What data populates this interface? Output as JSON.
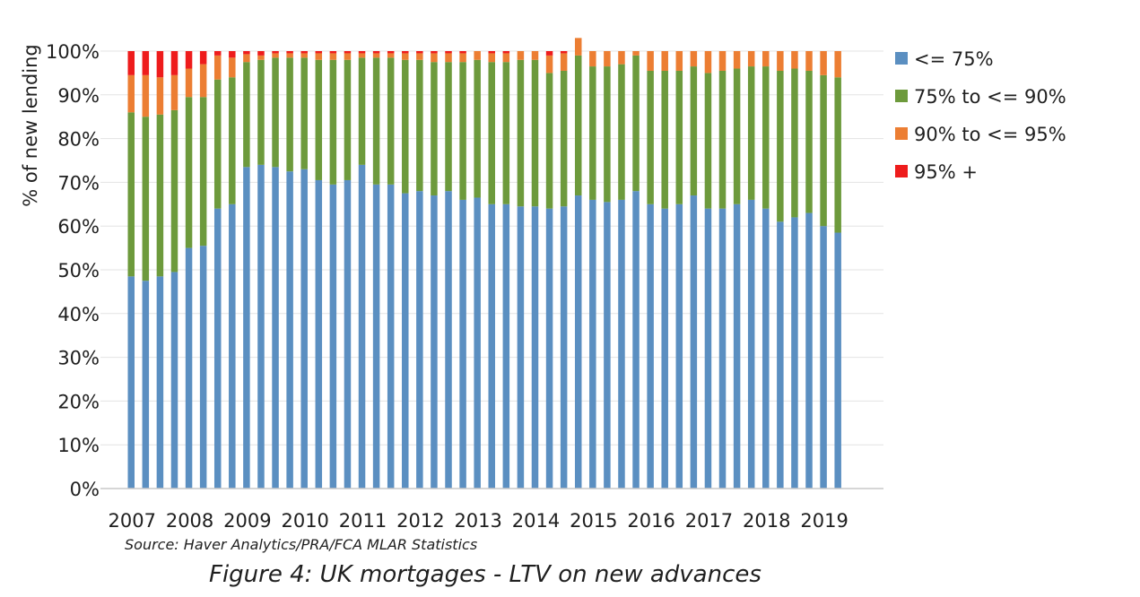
{
  "chart_data": {
    "type": "bar",
    "stacked": true,
    "title": "",
    "ylabel": "% of new lending",
    "xlabel": "",
    "ylim": [
      0,
      100
    ],
    "yticks": [
      "0%",
      "10%",
      "20%",
      "30%",
      "40%",
      "50%",
      "60%",
      "70%",
      "80%",
      "90%",
      "100%"
    ],
    "year_labels": [
      "2007",
      "2008",
      "2009",
      "2010",
      "2011",
      "2012",
      "2013",
      "2014",
      "2015",
      "2016",
      "2017",
      "2018",
      "2019"
    ],
    "periods_per_year": 4,
    "grid": true,
    "legend_position": "right",
    "series": [
      {
        "name": "<= 75%",
        "color": "#5b8fc1",
        "values": [
          48.5,
          47.5,
          48.5,
          49.5,
          55,
          55.5,
          64,
          65,
          73.5,
          74,
          73.5,
          72.5,
          73,
          70.5,
          69.5,
          70.5,
          74,
          69.5,
          69.5,
          67.5,
          68,
          67,
          68,
          66,
          66.5,
          65,
          65,
          64.5,
          64.5,
          64,
          64.5,
          67,
          66,
          65.5,
          66,
          68,
          65,
          64,
          65,
          67,
          64,
          64,
          65,
          66,
          64,
          61,
          62,
          63,
          60,
          58.5
        ]
      },
      {
        "name": "75% to <= 90%",
        "color": "#6d9a3c",
        "values": [
          37.5,
          37.5,
          37,
          37,
          34.5,
          34,
          29.5,
          29,
          24,
          24,
          25,
          26,
          25.5,
          27.5,
          28.5,
          27.5,
          24.5,
          29,
          29,
          30.5,
          30,
          30.5,
          29.5,
          31.5,
          31.5,
          32.5,
          32.5,
          33.5,
          33.5,
          31,
          31,
          32,
          30.5,
          31,
          31,
          31,
          30.5,
          31.5,
          30.5,
          29.5,
          31,
          31.5,
          31,
          30.5,
          32.5,
          34.5,
          34,
          32.5,
          34.5,
          35.5
        ]
      },
      {
        "name": "90% to <= 95%",
        "color": "#ec7e33",
        "values": [
          8.5,
          9.5,
          8.5,
          8,
          6.5,
          7.5,
          5.5,
          4.5,
          1.8,
          1,
          1,
          1,
          1,
          1.5,
          1.5,
          1.5,
          1,
          1,
          1,
          1.5,
          1.5,
          2,
          2,
          2,
          2,
          2,
          2,
          2,
          2,
          4,
          4,
          4,
          3.5,
          3.5,
          3,
          1,
          4.5,
          4.5,
          4.5,
          3.5,
          5,
          4.5,
          4,
          3.5,
          3.5,
          4.5,
          4,
          4.5,
          5.5,
          6
        ]
      },
      {
        "name": "95% +",
        "color": "#ee1c1c",
        "values": [
          5.5,
          5.5,
          6,
          5.5,
          4,
          3,
          1,
          1.5,
          0.7,
          1,
          0.5,
          0.5,
          0.5,
          0.5,
          0.5,
          0.5,
          0.5,
          0.5,
          0.5,
          0.5,
          0.5,
          0.5,
          0.5,
          0.5,
          0,
          0.5,
          0.5,
          0,
          0,
          1,
          0.5,
          0,
          0,
          0,
          0,
          0,
          0,
          0,
          0,
          0,
          0,
          0,
          0,
          0,
          0,
          0,
          0,
          0,
          0,
          0
        ]
      }
    ],
    "source": "Source: Haver Analytics/PRA/FCA MLAR Statistics",
    "caption": "Figure 4: UK mortgages - LTV on new advances"
  }
}
